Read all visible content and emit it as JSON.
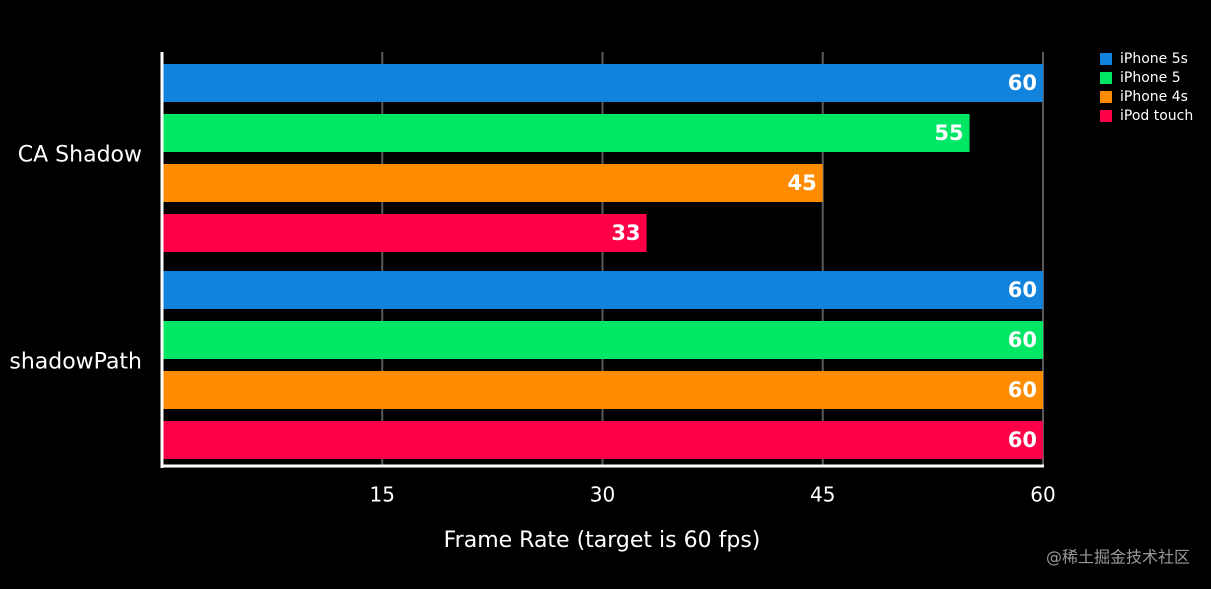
{
  "chart_data": {
    "type": "bar",
    "orientation": "horizontal",
    "x_label": "Frame Rate (target is 60 fps)",
    "categories": [
      "CA Shadow",
      "shadowPath"
    ],
    "series": [
      {
        "name": "iPhone 5s",
        "color": "#1283dd",
        "values": [
          60,
          60
        ]
      },
      {
        "name": "iPhone 5",
        "color": "#00e765",
        "values": [
          55,
          60
        ]
      },
      {
        "name": "iPhone 4s",
        "color": "#ff8c00",
        "values": [
          45,
          60
        ]
      },
      {
        "name": "iPod touch",
        "color": "#ff0048",
        "values": [
          33,
          60
        ]
      }
    ],
    "xlim": [
      0,
      60
    ],
    "xticks": [
      15,
      30,
      45,
      60
    ],
    "grid": true,
    "legend": "top-right",
    "watermark": "@稀土掘金技术社区"
  }
}
